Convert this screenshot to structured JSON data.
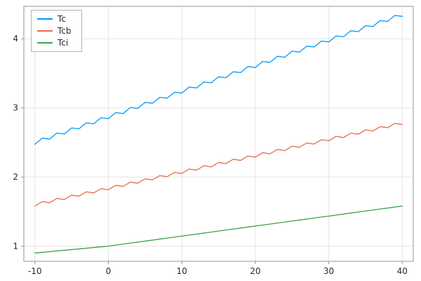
{
  "chart_data": {
    "type": "line",
    "title": "",
    "xlabel": "",
    "ylabel": "",
    "xlim": [
      -11.5,
      41.5
    ],
    "ylim": [
      0.78,
      4.47
    ],
    "xticks": [
      -10,
      0,
      10,
      20,
      30,
      40
    ],
    "yticks": [
      1,
      2,
      3,
      4
    ],
    "grid": true,
    "legend_position": "top-left",
    "style": {
      "grid_color": "#e4e4e4",
      "frame_color": "#969696",
      "tick_label_color": "#2b2b2b",
      "background": "#ffffff"
    },
    "x": [
      -10,
      -9,
      -8,
      -7,
      -6,
      -5,
      -4,
      -3,
      -2,
      -1,
      0,
      1,
      2,
      3,
      4,
      5,
      6,
      7,
      8,
      9,
      10,
      11,
      12,
      13,
      14,
      15,
      16,
      17,
      18,
      19,
      20,
      21,
      22,
      23,
      24,
      25,
      26,
      27,
      28,
      29,
      30,
      31,
      32,
      33,
      34,
      35,
      36,
      37,
      38,
      39,
      40
    ],
    "series": [
      {
        "name": "Tc",
        "color": "#009af9",
        "values": [
          2.475,
          2.562,
          2.549,
          2.636,
          2.623,
          2.71,
          2.697,
          2.784,
          2.771,
          2.858,
          2.845,
          2.932,
          2.919,
          3.006,
          2.993,
          3.08,
          3.067,
          3.154,
          3.141,
          3.228,
          3.215,
          3.302,
          3.289,
          3.376,
          3.363,
          3.45,
          3.437,
          3.524,
          3.511,
          3.598,
          3.585,
          3.672,
          3.659,
          3.746,
          3.733,
          3.82,
          3.807,
          3.894,
          3.881,
          3.968,
          3.955,
          4.042,
          4.029,
          4.116,
          4.103,
          4.19,
          4.177,
          4.264,
          4.251,
          4.338,
          4.325
        ]
      },
      {
        "name": "Tcb",
        "color": "#e26e46",
        "values": [
          1.58,
          1.644,
          1.627,
          1.691,
          1.674,
          1.738,
          1.722,
          1.785,
          1.769,
          1.832,
          1.816,
          1.88,
          1.863,
          1.927,
          1.91,
          1.974,
          1.958,
          2.021,
          2.005,
          2.068,
          2.052,
          2.116,
          2.099,
          2.163,
          2.146,
          2.21,
          2.194,
          2.257,
          2.241,
          2.304,
          2.288,
          2.352,
          2.335,
          2.399,
          2.382,
          2.446,
          2.43,
          2.493,
          2.477,
          2.54,
          2.524,
          2.588,
          2.571,
          2.635,
          2.618,
          2.682,
          2.666,
          2.729,
          2.713,
          2.776,
          2.76
        ]
      },
      {
        "name": "Tci",
        "color": "#3da44e",
        "values": [
          0.9,
          0.91,
          0.92,
          0.93,
          0.94,
          0.95,
          0.96,
          0.97,
          0.98,
          0.99,
          1.0,
          1.015,
          1.029,
          1.044,
          1.058,
          1.073,
          1.087,
          1.102,
          1.116,
          1.131,
          1.145,
          1.16,
          1.174,
          1.189,
          1.203,
          1.218,
          1.232,
          1.247,
          1.261,
          1.276,
          1.29,
          1.305,
          1.319,
          1.334,
          1.348,
          1.363,
          1.377,
          1.392,
          1.406,
          1.421,
          1.435,
          1.45,
          1.464,
          1.479,
          1.493,
          1.508,
          1.522,
          1.537,
          1.551,
          1.566,
          1.58
        ]
      }
    ]
  }
}
